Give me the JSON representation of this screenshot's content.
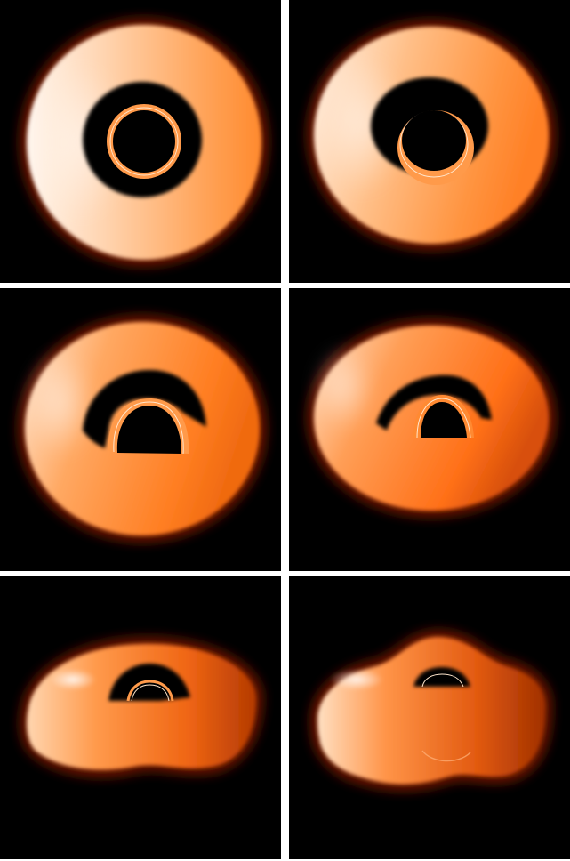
{
  "figure": {
    "panels": [
      {
        "id": "panel-1"
      },
      {
        "id": "panel-2"
      },
      {
        "id": "panel-3"
      },
      {
        "id": "panel-4"
      },
      {
        "id": "panel-5"
      },
      {
        "id": "panel-6"
      }
    ],
    "colors": {
      "background": "#000000",
      "disk_bright": "#fff4ea",
      "disk_mid": "#ffa056",
      "disk_orange": "#ff7a1a",
      "disk_dark": "#b83a00",
      "glow_edge": "#5a0f00",
      "photon_ring": "#ff9a4a",
      "photon_line": "#ffe6cc",
      "separator": "#ffffff"
    }
  }
}
